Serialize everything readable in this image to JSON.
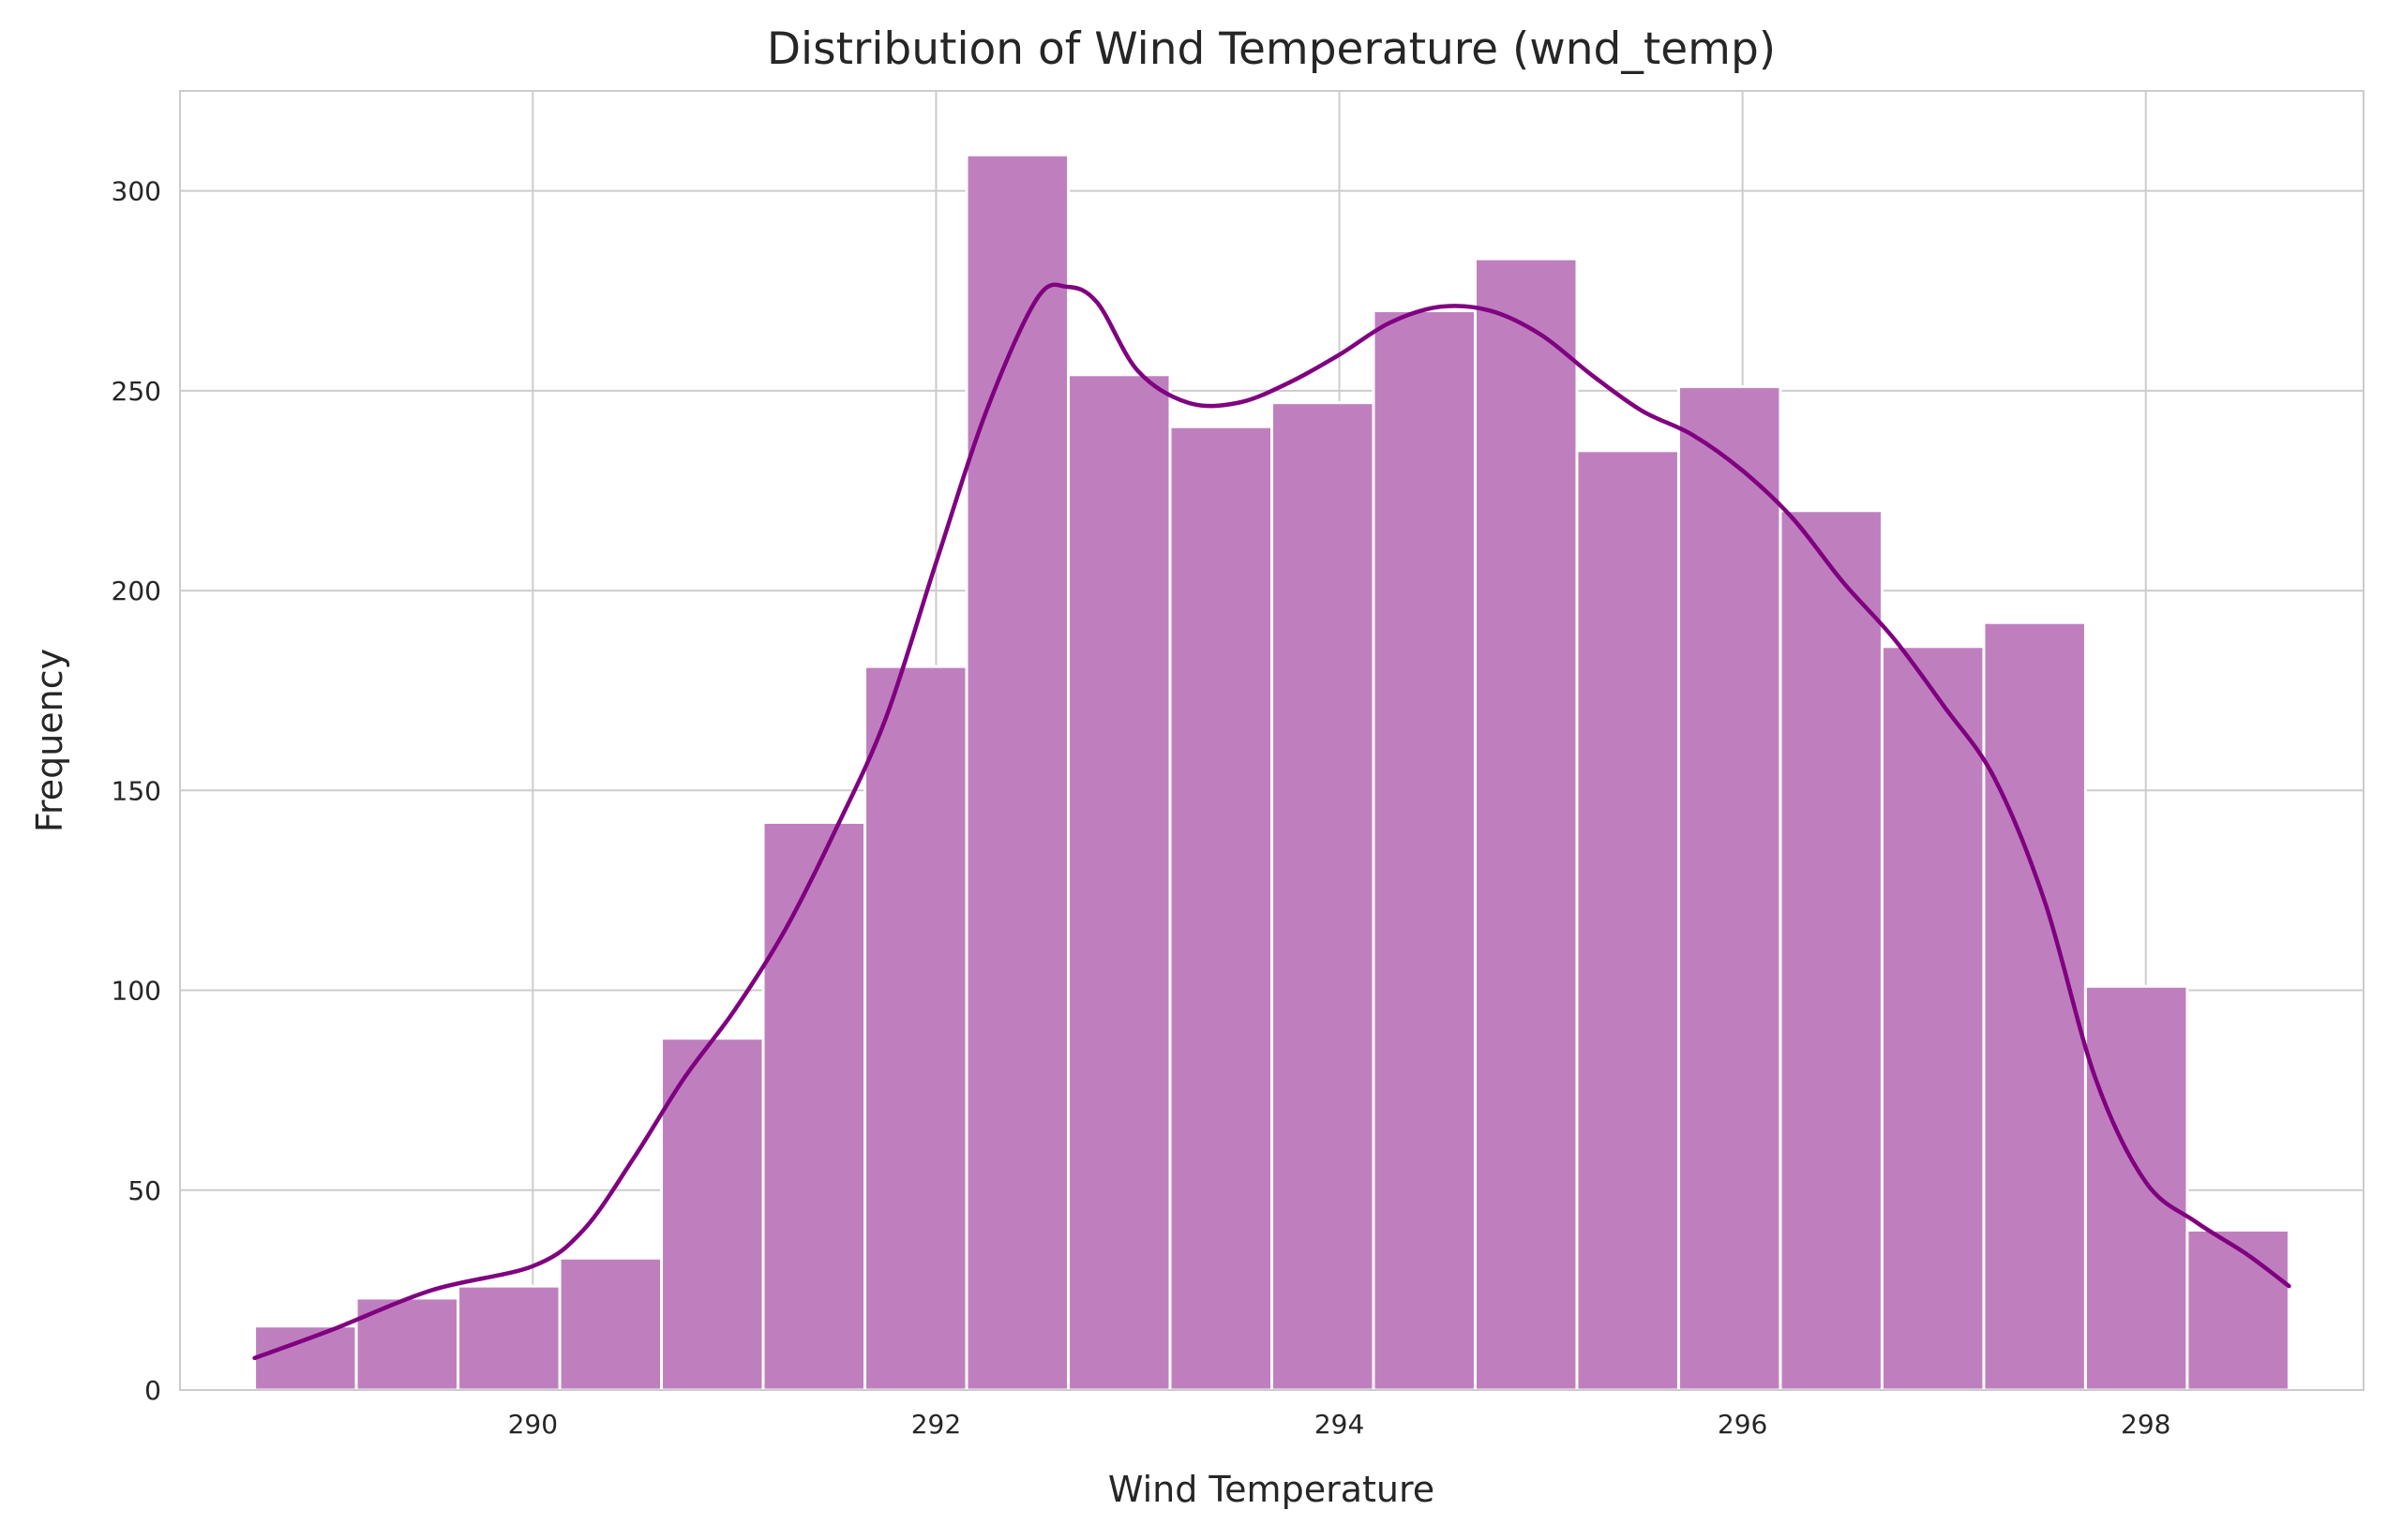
{
  "chart_data": {
    "type": "bar",
    "title": "Distribution of Wind Temperature (wnd_temp)",
    "xlabel": "Wind Temperature",
    "ylabel": "Frequency",
    "xlim": [
      288.25,
      299.08
    ],
    "ylim": [
      0,
      325
    ],
    "xticks": [
      290,
      292,
      294,
      296,
      298
    ],
    "xtick_labels": [
      "290",
      "292",
      "294",
      "296",
      "298"
    ],
    "yticks": [
      0,
      50,
      100,
      150,
      200,
      250,
      300
    ],
    "ytick_labels": [
      "0",
      "50",
      "100",
      "150",
      "200",
      "250",
      "300"
    ],
    "grid": true,
    "legend": "none",
    "bins": {
      "start": 288.62,
      "end": 298.71,
      "count": 20,
      "values": [
        16,
        23,
        26,
        33,
        88,
        142,
        181,
        309,
        254,
        241,
        247,
        270,
        283,
        235,
        251,
        220,
        186,
        192,
        101,
        40
      ]
    },
    "kde": {
      "x": [
        288.62,
        289.0,
        289.5,
        290.0,
        290.25,
        290.5,
        290.75,
        291.0,
        291.25,
        291.5,
        291.75,
        292.0,
        292.25,
        292.5,
        292.65,
        292.8,
        293.0,
        293.25,
        293.5,
        293.75,
        294.0,
        294.25,
        294.5,
        294.75,
        295.0,
        295.25,
        295.5,
        295.75,
        296.0,
        296.25,
        296.5,
        296.75,
        297.0,
        297.25,
        297.5,
        297.75,
        298.0,
        298.25,
        298.5,
        298.71
      ],
      "y": [
        8,
        15,
        25,
        31,
        40,
        58,
        78,
        95,
        115,
        140,
        168,
        207,
        245,
        273,
        276,
        272,
        255,
        247,
        247,
        252,
        259,
        267,
        271,
        270,
        264,
        254,
        245,
        239,
        230,
        218,
        202,
        188,
        171,
        153,
        122,
        78,
        52,
        42,
        34,
        26
      ]
    },
    "colors": {
      "bar_fill": "#bf7fbf",
      "bar_edge": "#ffffff",
      "kde_line": "#800080",
      "grid": "#cccccc",
      "axes_edge": "#cccccc",
      "text": "#262626"
    }
  }
}
